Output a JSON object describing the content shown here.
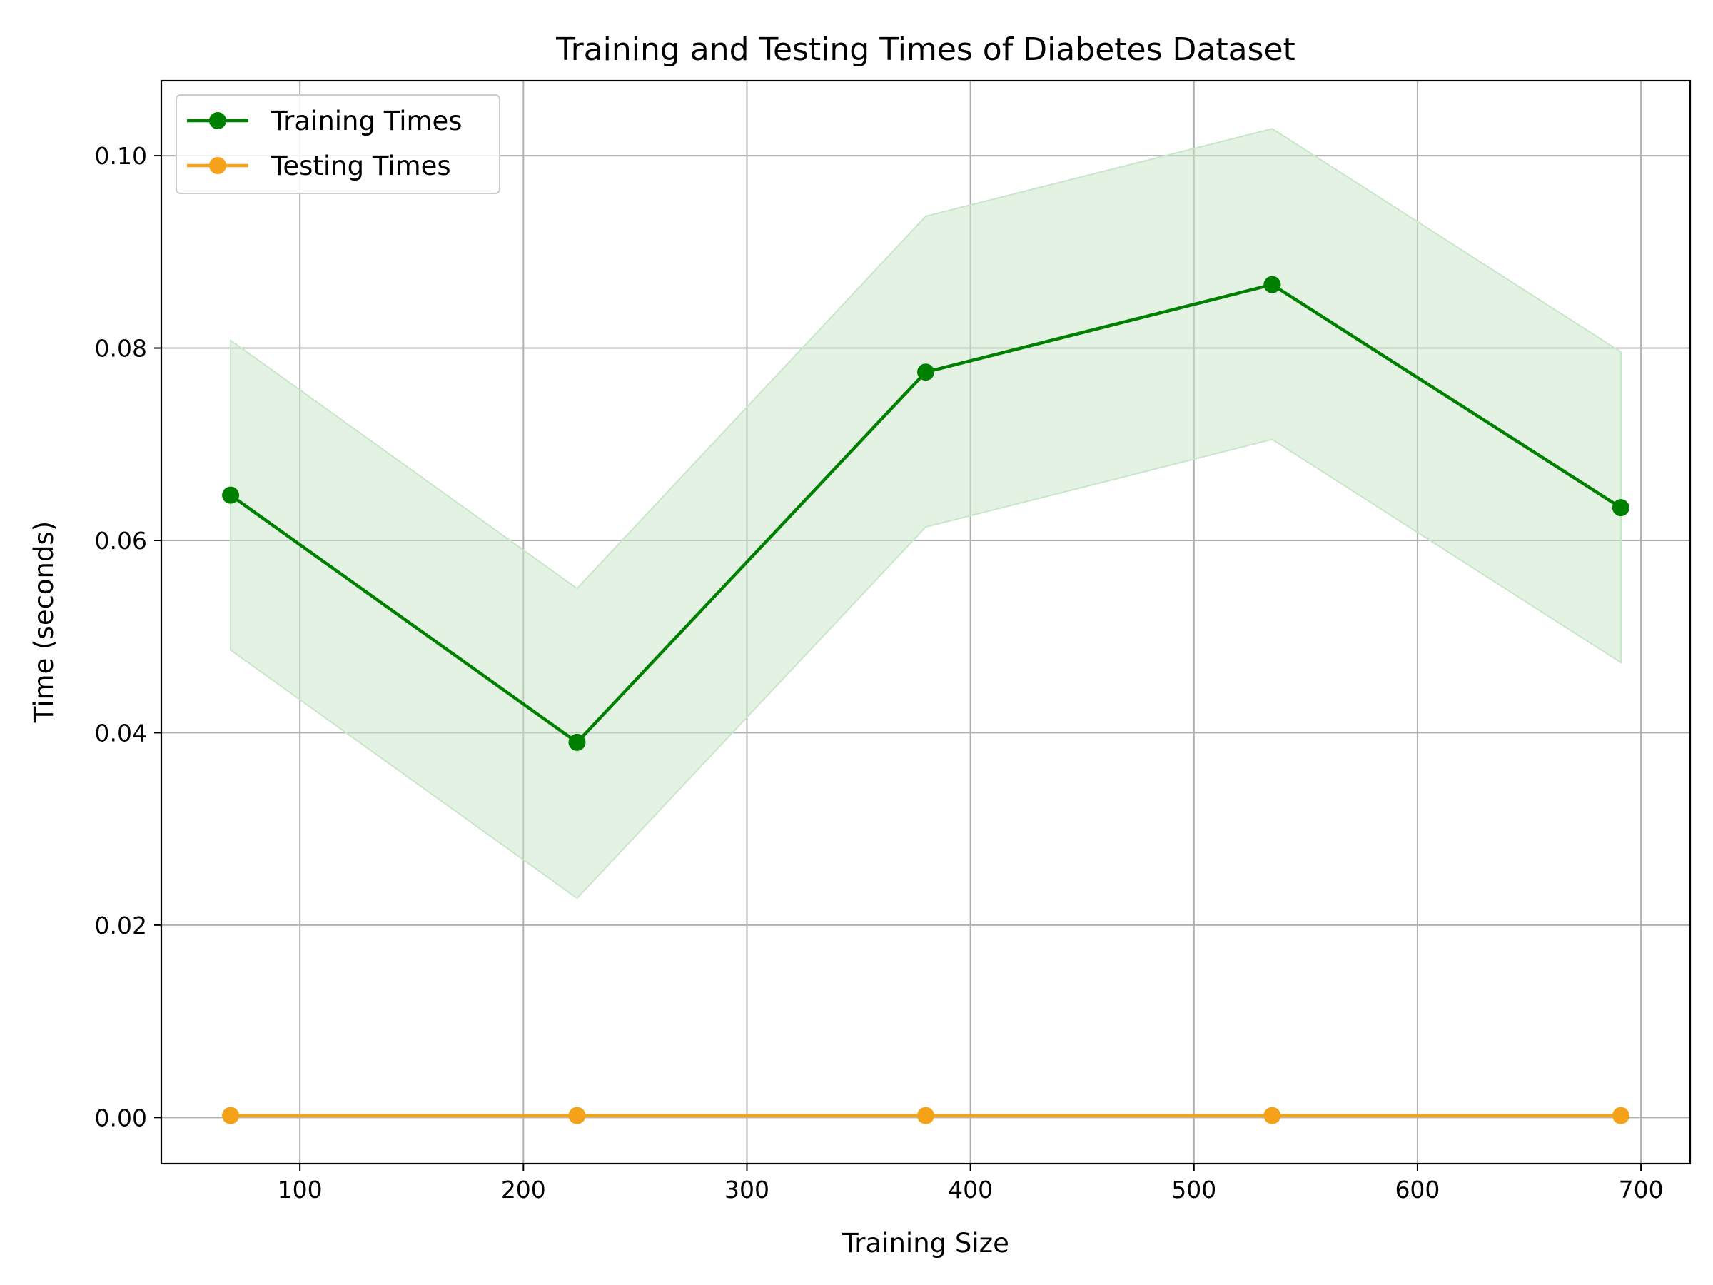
{
  "chart_data": {
    "type": "line",
    "title": "Training and Testing Times of Diabetes Dataset",
    "xlabel": "Training Size",
    "ylabel": "Time (seconds)",
    "x": [
      69,
      224,
      380,
      535,
      691
    ],
    "xlim": [
      38,
      722
    ],
    "ylim": [
      -0.0048,
      0.1078
    ],
    "xticks": [
      100,
      200,
      300,
      400,
      500,
      600,
      700
    ],
    "xtick_labels": [
      "100",
      "200",
      "300",
      "400",
      "500",
      "600",
      "700"
    ],
    "yticks": [
      0.0,
      0.02,
      0.04,
      0.06,
      0.08,
      0.1
    ],
    "ytick_labels": [
      "0.00",
      "0.02",
      "0.04",
      "0.06",
      "0.08",
      "0.10"
    ],
    "grid": true,
    "legend_position": "upper-left",
    "series": [
      {
        "name": "Training Times",
        "color": "#008000",
        "values": [
          0.0647,
          0.039,
          0.0775,
          0.0866,
          0.0634
        ],
        "band_lower": [
          0.0486,
          0.0228,
          0.0614,
          0.0705,
          0.0473
        ],
        "band_upper": [
          0.0808,
          0.055,
          0.0937,
          0.1028,
          0.0796
        ],
        "band_color": "#c8e6c8"
      },
      {
        "name": "Testing Times",
        "color": "#f5a21b",
        "values": [
          0.0002,
          0.0002,
          0.0002,
          0.0002,
          0.0002
        ]
      }
    ]
  }
}
